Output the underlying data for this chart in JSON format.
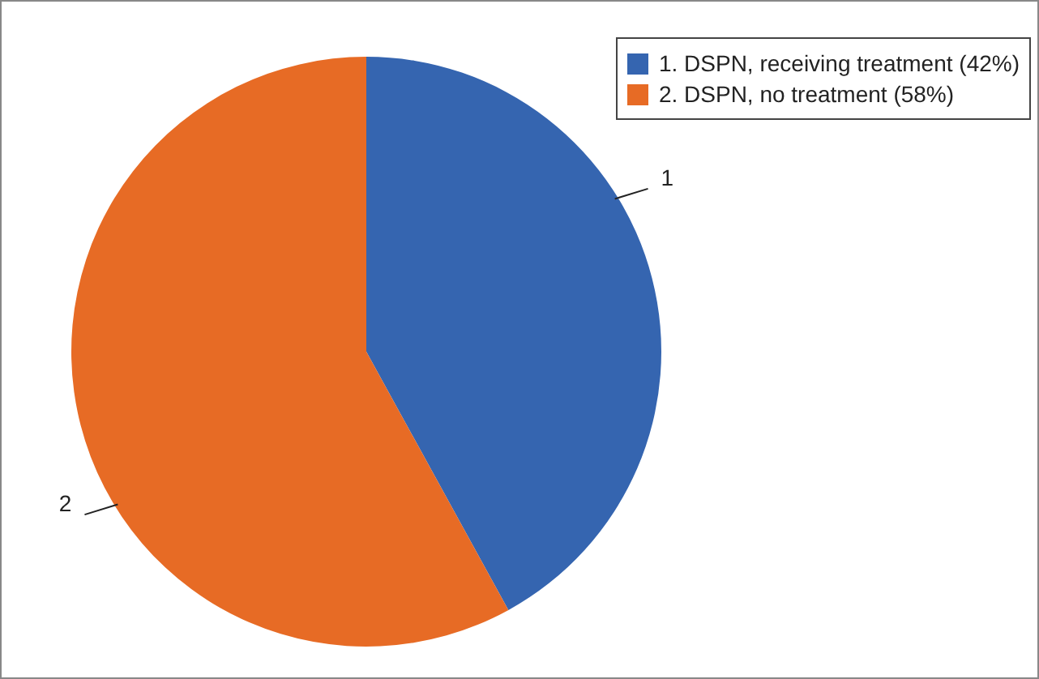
{
  "chart_data": {
    "type": "pie",
    "categories": [
      "1. DSPN, receiving treatment (42%)",
      "2. DSPN, no treatment (58%)"
    ],
    "values": [
      42,
      58
    ],
    "colors": [
      "#3565b0",
      "#e76b25"
    ],
    "annotations": [
      "1",
      "2"
    ],
    "legend": "top right"
  }
}
